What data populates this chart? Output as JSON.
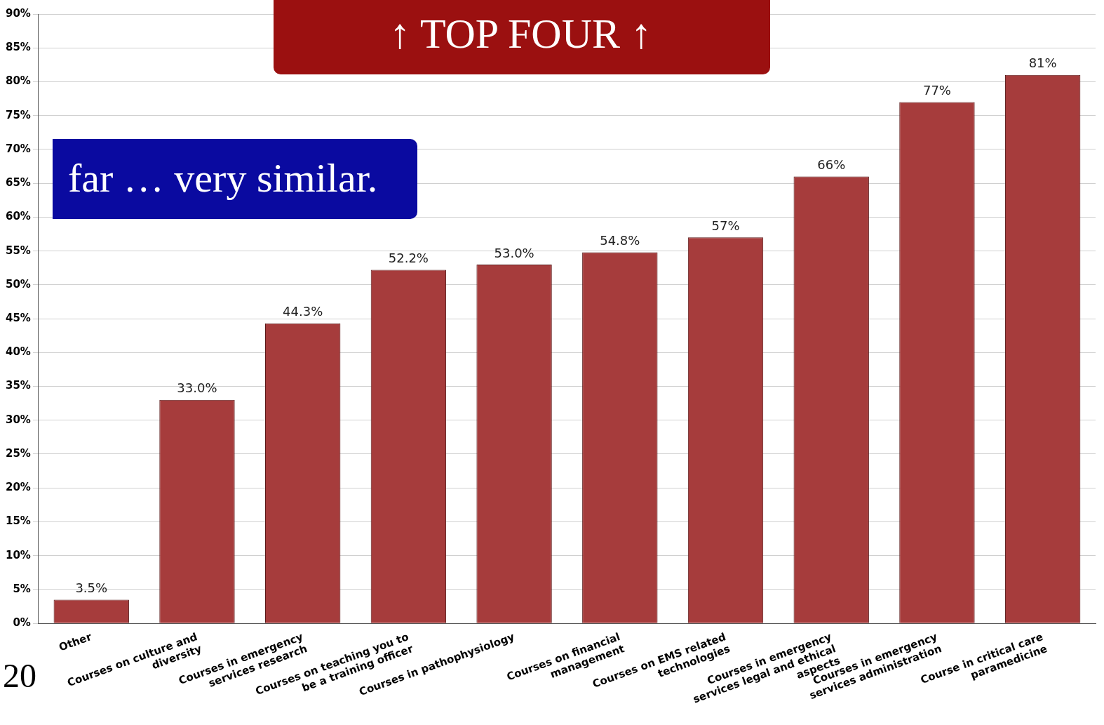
{
  "chart_data": {
    "type": "bar",
    "categories": [
      "Other",
      "Courses on culture and diversity",
      "Courses in emergency services research",
      "Courses on teaching you to be a training officer",
      "Courses in pathophysiology",
      "Courses on financial management",
      "Courses on EMS related technologies",
      "Courses in emergency services legal and ethical aspects",
      "Courses in emergency services administration",
      "Course in critical care paramedicine"
    ],
    "values": [
      3.5,
      33.0,
      44.3,
      52.2,
      53.0,
      54.8,
      57,
      66,
      77,
      81
    ],
    "value_labels": [
      "3.5%",
      "33.0%",
      "44.3%",
      "52.2%",
      "53.0%",
      "54.8%",
      "57%",
      "66%",
      "77%",
      "81%"
    ],
    "color": "#a63c3c",
    "ylim": [
      0,
      90
    ],
    "yticks": [
      {
        "value": 0,
        "label": "0%"
      },
      {
        "value": 5,
        "label": "5%"
      },
      {
        "value": 10,
        "label": "10%"
      },
      {
        "value": 15,
        "label": "15%"
      },
      {
        "value": 20,
        "label": "20%"
      },
      {
        "value": 25,
        "label": "25%"
      },
      {
        "value": 30,
        "label": "30%"
      },
      {
        "value": 35,
        "label": "35%"
      },
      {
        "value": 40,
        "label": "40%"
      },
      {
        "value": 45,
        "label": "45%"
      },
      {
        "value": 50,
        "label": "50%"
      },
      {
        "value": 55,
        "label": "55%"
      },
      {
        "value": 60,
        "label": "60%"
      },
      {
        "value": 65,
        "label": "65%"
      },
      {
        "value": 70,
        "label": "70%"
      },
      {
        "value": 75,
        "label": "75%"
      },
      {
        "value": 80,
        "label": "80%"
      },
      {
        "value": 85,
        "label": "85%"
      },
      {
        "value": 90,
        "label": "90%"
      }
    ],
    "grid": "y",
    "annotations": [
      "↑ TOP FOUR ↑",
      "far … very similar.",
      "20"
    ]
  }
}
